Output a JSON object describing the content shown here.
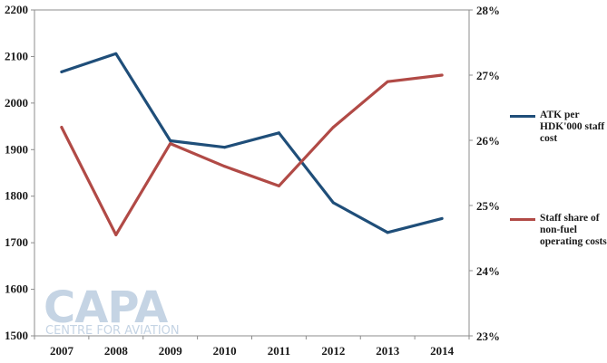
{
  "chart_data": {
    "type": "line",
    "categories": [
      "2007",
      "2008",
      "2009",
      "2010",
      "2011",
      "2012",
      "2013",
      "2014"
    ],
    "left_axis": {
      "min": 1500,
      "max": 2200,
      "ticks": [
        "1500",
        "1600",
        "1700",
        "1800",
        "1900",
        "2000",
        "2100",
        "2200"
      ]
    },
    "right_axis": {
      "min": 23,
      "max": 28,
      "ticks": [
        "23%",
        "24%",
        "25%",
        "26%",
        "27%",
        "28%"
      ]
    },
    "series": [
      {
        "name": "ATK per HDK'000 staff cost",
        "axis": "left",
        "color": "#1f4e79",
        "values": [
          2067,
          2106,
          1919,
          1905,
          1936,
          1786,
          1722,
          1752
        ]
      },
      {
        "name": "Staff share of non-fuel operating costs",
        "axis": "right",
        "color": "#b14a46",
        "values": [
          26.2,
          24.55,
          25.95,
          25.6,
          25.3,
          26.2,
          26.9,
          27.0
        ]
      }
    ],
    "grid": false,
    "legend_position": "right"
  },
  "watermark": {
    "line1": "CAPA",
    "line2": "CENTRE FOR AVIATION",
    "color": "#c5d4e4"
  }
}
